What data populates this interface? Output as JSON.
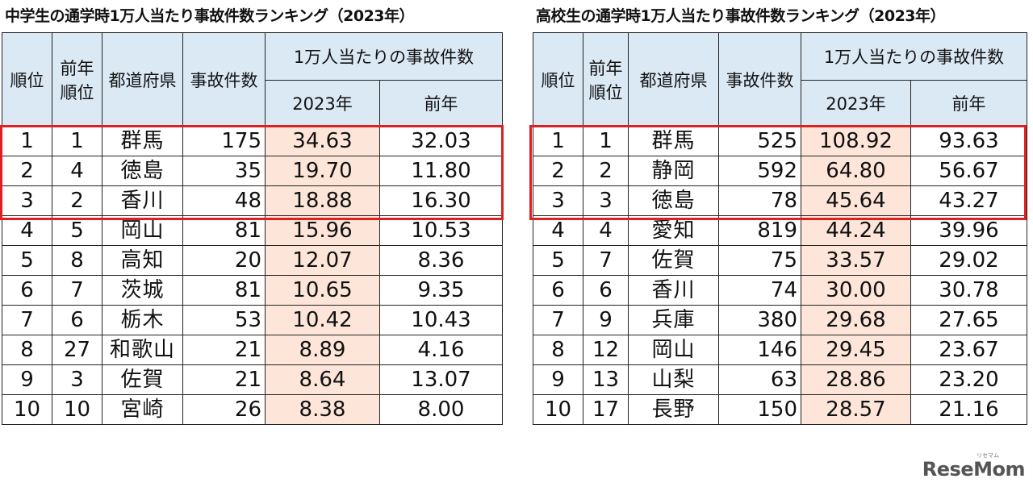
{
  "left": {
    "title": "中学生の通学時1万人当たり事故件数ランキング（2023年）",
    "headers": {
      "rank": "順位",
      "prev_rank": "前年順位",
      "prefecture": "都道府県",
      "accidents": "事故件数",
      "rate_group": "1万人当たりの事故件数",
      "rate_2023": "2023年",
      "rate_prev": "前年"
    },
    "rows": [
      {
        "rank": "1",
        "prev_rank": "1",
        "prefecture": "群馬",
        "accidents": "175",
        "rate_2023": "34.63",
        "rate_prev": "32.03"
      },
      {
        "rank": "2",
        "prev_rank": "4",
        "prefecture": "徳島",
        "accidents": "35",
        "rate_2023": "19.70",
        "rate_prev": "11.80"
      },
      {
        "rank": "3",
        "prev_rank": "2",
        "prefecture": "香川",
        "accidents": "48",
        "rate_2023": "18.88",
        "rate_prev": "16.30"
      },
      {
        "rank": "4",
        "prev_rank": "5",
        "prefecture": "岡山",
        "accidents": "81",
        "rate_2023": "15.96",
        "rate_prev": "10.53"
      },
      {
        "rank": "5",
        "prev_rank": "8",
        "prefecture": "高知",
        "accidents": "20",
        "rate_2023": "12.07",
        "rate_prev": "8.36"
      },
      {
        "rank": "6",
        "prev_rank": "7",
        "prefecture": "茨城",
        "accidents": "81",
        "rate_2023": "10.65",
        "rate_prev": "9.35"
      },
      {
        "rank": "7",
        "prev_rank": "6",
        "prefecture": "栃木",
        "accidents": "53",
        "rate_2023": "10.42",
        "rate_prev": "10.43"
      },
      {
        "rank": "8",
        "prev_rank": "27",
        "prefecture": "和歌山",
        "accidents": "21",
        "rate_2023": "8.89",
        "rate_prev": "4.16"
      },
      {
        "rank": "9",
        "prev_rank": "3",
        "prefecture": "佐賀",
        "accidents": "21",
        "rate_2023": "8.64",
        "rate_prev": "13.07"
      },
      {
        "rank": "10",
        "prev_rank": "10",
        "prefecture": "宮崎",
        "accidents": "26",
        "rate_2023": "8.38",
        "rate_prev": "8.00"
      }
    ]
  },
  "right": {
    "title": "高校生の通学時1万人当たり事故件数ランキング（2023年）",
    "headers": {
      "rank": "順位",
      "prev_rank": "前年順位",
      "prefecture": "都道府県",
      "accidents": "事故件数",
      "rate_group": "1万人当たりの事故件数",
      "rate_2023": "2023年",
      "rate_prev": "前年"
    },
    "rows": [
      {
        "rank": "1",
        "prev_rank": "1",
        "prefecture": "群馬",
        "accidents": "525",
        "rate_2023": "108.92",
        "rate_prev": "93.63"
      },
      {
        "rank": "2",
        "prev_rank": "2",
        "prefecture": "静岡",
        "accidents": "592",
        "rate_2023": "64.80",
        "rate_prev": "56.67"
      },
      {
        "rank": "3",
        "prev_rank": "3",
        "prefecture": "徳島",
        "accidents": "78",
        "rate_2023": "45.64",
        "rate_prev": "43.27"
      },
      {
        "rank": "4",
        "prev_rank": "4",
        "prefecture": "愛知",
        "accidents": "819",
        "rate_2023": "44.24",
        "rate_prev": "39.96"
      },
      {
        "rank": "5",
        "prev_rank": "7",
        "prefecture": "佐賀",
        "accidents": "75",
        "rate_2023": "33.57",
        "rate_prev": "29.02"
      },
      {
        "rank": "6",
        "prev_rank": "6",
        "prefecture": "香川",
        "accidents": "74",
        "rate_2023": "30.00",
        "rate_prev": "30.78"
      },
      {
        "rank": "7",
        "prev_rank": "9",
        "prefecture": "兵庫",
        "accidents": "380",
        "rate_2023": "29.68",
        "rate_prev": "27.65"
      },
      {
        "rank": "8",
        "prev_rank": "12",
        "prefecture": "岡山",
        "accidents": "146",
        "rate_2023": "29.45",
        "rate_prev": "23.67"
      },
      {
        "rank": "9",
        "prev_rank": "13",
        "prefecture": "山梨",
        "accidents": "63",
        "rate_2023": "28.86",
        "rate_prev": "23.20"
      },
      {
        "rank": "10",
        "prev_rank": "17",
        "prefecture": "長野",
        "accidents": "150",
        "rate_2023": "28.57",
        "rate_prev": "21.16"
      }
    ]
  },
  "colors": {
    "header_bg": "#dbe9f5",
    "rate_highlight": "#fde6d9",
    "top3_border": "#e02020"
  },
  "logo": {
    "text": "ReseMom",
    "small_text": "リセマム"
  }
}
